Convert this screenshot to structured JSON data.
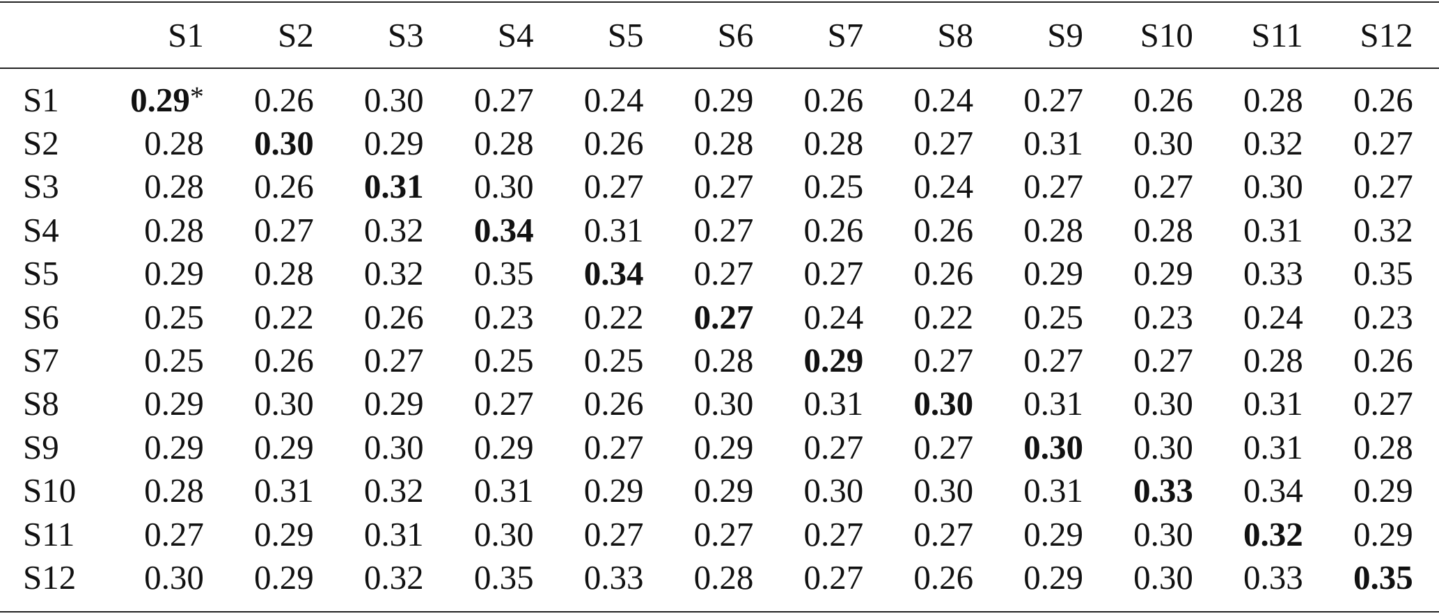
{
  "table": {
    "columns": [
      "S1",
      "S2",
      "S3",
      "S4",
      "S5",
      "S6",
      "S7",
      "S8",
      "S9",
      "S10",
      "S11",
      "S12"
    ],
    "rows": [
      {
        "label": "S1",
        "cells": [
          "0.29",
          "0.26",
          "0.30",
          "0.27",
          "0.24",
          "0.29",
          "0.26",
          "0.24",
          "0.27",
          "0.26",
          "0.28",
          "0.26"
        ]
      },
      {
        "label": "S2",
        "cells": [
          "0.28",
          "0.30",
          "0.29",
          "0.28",
          "0.26",
          "0.28",
          "0.28",
          "0.27",
          "0.31",
          "0.30",
          "0.32",
          "0.27"
        ]
      },
      {
        "label": "S3",
        "cells": [
          "0.28",
          "0.26",
          "0.31",
          "0.30",
          "0.27",
          "0.27",
          "0.25",
          "0.24",
          "0.27",
          "0.27",
          "0.30",
          "0.27"
        ]
      },
      {
        "label": "S4",
        "cells": [
          "0.28",
          "0.27",
          "0.32",
          "0.34",
          "0.31",
          "0.27",
          "0.26",
          "0.26",
          "0.28",
          "0.28",
          "0.31",
          "0.32"
        ]
      },
      {
        "label": "S5",
        "cells": [
          "0.29",
          "0.28",
          "0.32",
          "0.35",
          "0.34",
          "0.27",
          "0.27",
          "0.26",
          "0.29",
          "0.29",
          "0.33",
          "0.35"
        ]
      },
      {
        "label": "S6",
        "cells": [
          "0.25",
          "0.22",
          "0.26",
          "0.23",
          "0.22",
          "0.27",
          "0.24",
          "0.22",
          "0.25",
          "0.23",
          "0.24",
          "0.23"
        ]
      },
      {
        "label": "S7",
        "cells": [
          "0.25",
          "0.26",
          "0.27",
          "0.25",
          "0.25",
          "0.28",
          "0.29",
          "0.27",
          "0.27",
          "0.27",
          "0.28",
          "0.26"
        ]
      },
      {
        "label": "S8",
        "cells": [
          "0.29",
          "0.30",
          "0.29",
          "0.27",
          "0.26",
          "0.30",
          "0.31",
          "0.30",
          "0.31",
          "0.30",
          "0.31",
          "0.27"
        ]
      },
      {
        "label": "S9",
        "cells": [
          "0.29",
          "0.29",
          "0.30",
          "0.29",
          "0.27",
          "0.29",
          "0.27",
          "0.27",
          "0.30",
          "0.30",
          "0.31",
          "0.28"
        ]
      },
      {
        "label": "S10",
        "cells": [
          "0.28",
          "0.31",
          "0.32",
          "0.31",
          "0.29",
          "0.29",
          "0.30",
          "0.30",
          "0.31",
          "0.33",
          "0.34",
          "0.29"
        ]
      },
      {
        "label": "S11",
        "cells": [
          "0.27",
          "0.29",
          "0.31",
          "0.30",
          "0.27",
          "0.27",
          "0.27",
          "0.27",
          "0.29",
          "0.30",
          "0.32",
          "0.29"
        ]
      },
      {
        "label": "S12",
        "cells": [
          "0.30",
          "0.29",
          "0.32",
          "0.35",
          "0.33",
          "0.28",
          "0.27",
          "0.26",
          "0.29",
          "0.30",
          "0.33",
          "0.35"
        ]
      }
    ],
    "footnote_mark": "*"
  }
}
